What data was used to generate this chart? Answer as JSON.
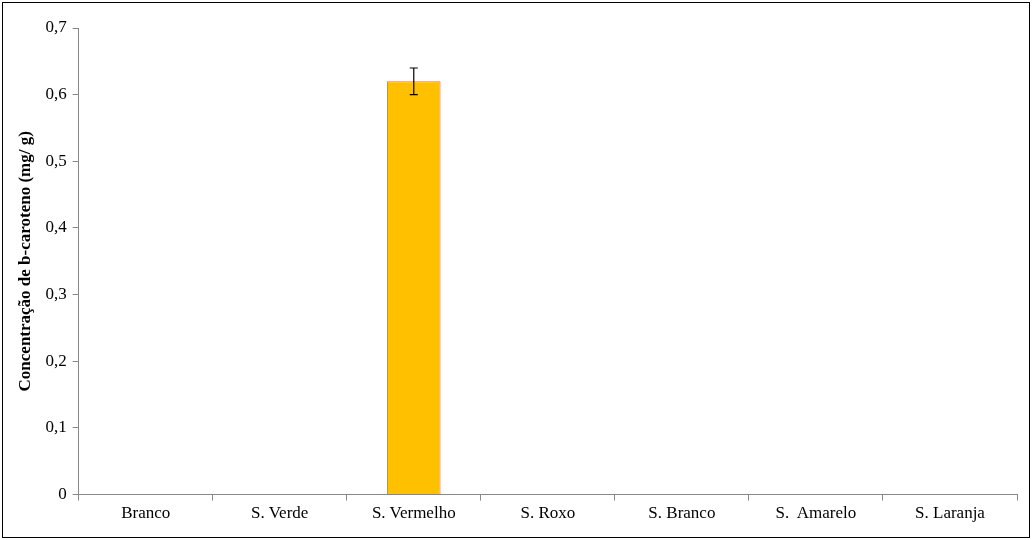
{
  "chart_data": {
    "type": "bar",
    "ylabel": "Concentração de b-caroteno (mg/ g)",
    "categories": [
      "Branco",
      "S. Verde",
      "S. Vermelho",
      "S. Roxo",
      "S. Branco",
      "S.  Amarelo",
      "S. Laranja"
    ],
    "values": [
      0,
      0,
      0.62,
      0,
      0,
      0,
      0
    ],
    "errors": [
      null,
      null,
      0.02,
      null,
      null,
      null,
      null
    ],
    "color": "#ffc000",
    "ylim": [
      0,
      0.7
    ],
    "yticks": [
      0,
      {
        "value": 0.1,
        "label": "0,1"
      },
      {
        "value": 0.2,
        "label": "0,2"
      },
      {
        "value": 0.3,
        "label": "0,3"
      },
      {
        "value": 0.4,
        "label": "0,4"
      },
      {
        "value": 0.5,
        "label": "0,5"
      },
      {
        "value": 0.6,
        "label": "0,6"
      },
      {
        "value": 0.7,
        "label": "0,7"
      }
    ],
    "grid": false,
    "legend": false
  }
}
